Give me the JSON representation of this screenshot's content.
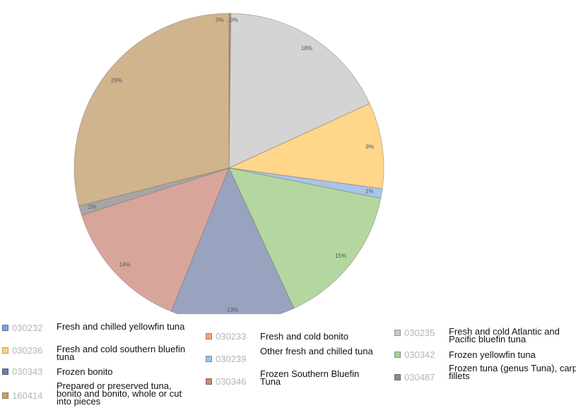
{
  "chart_data": {
    "type": "pie",
    "start_angle_deg": 0,
    "direction": "clockwise",
    "slices": [
      {
        "code": "030232",
        "name": "Fresh and chilled yellowfin tuna",
        "value": 0.1,
        "label": "0%",
        "color": "#8fa8dc"
      },
      {
        "code": "030233",
        "name": "Fresh and cold bonito",
        "value": 0.1,
        "label": "0%",
        "color": "#f4a07a"
      },
      {
        "code": "030235",
        "name": "Fresh and cold Atlantic and Pacific bluefin tuna",
        "value": 18,
        "label": "18%",
        "color": "#d4d4d4"
      },
      {
        "code": "030236",
        "name": "Fresh and cold southern bluefin tuna",
        "value": 9,
        "label": "9%",
        "color": "#ffd68a"
      },
      {
        "code": "030239",
        "name": "Other fresh and chilled tuna",
        "value": 1,
        "label": "1%",
        "color": "#a9c4ea"
      },
      {
        "code": "030342",
        "name": "Frozen yellowfin tuna",
        "value": 15,
        "label": "15%",
        "color": "#b4d69f"
      },
      {
        "code": "030343",
        "name": "Frozen bonito",
        "value": 13,
        "label": "13%",
        "color": "#98a3c0"
      },
      {
        "code": "030346",
        "name": "Frozen Southern Bluefin Tuna",
        "value": 14,
        "label": "14%",
        "color": "#d8a59a"
      },
      {
        "code": "030487",
        "name": "Frozen tuna (genus Tuna), carp fillets",
        "value": 1,
        "label": "1%",
        "color": "#a6a6a6"
      },
      {
        "code": "160414",
        "name": "Prepared or preserved tuna, bonito and bonito, whole or cut into pieces",
        "value": 29,
        "label": "29%",
        "color": "#cfb48e"
      }
    ]
  },
  "legend": [
    {
      "code": "030232",
      "desc": "Fresh and chilled yellowfin tuna",
      "color": "#7e9fd8"
    },
    {
      "code": "030233",
      "desc": "Fresh and cold bonito",
      "color": "#f4a07a"
    },
    {
      "code": "030235",
      "desc": "Fresh and cold Atlantic and Pacific bluefin tuna",
      "color": "#c8c8c8"
    },
    {
      "code": "030236",
      "desc": "Fresh and cold southern bluefin tuna",
      "color": "#ffd27a"
    },
    {
      "code": "030239",
      "desc": "Other fresh and chilled tuna",
      "color": "#9fc0ea"
    },
    {
      "code": "030342",
      "desc": "Frozen yellowfin tuna",
      "color": "#a6d28e"
    },
    {
      "code": "030343",
      "desc": "Frozen bonito",
      "color": "#6f7ea6"
    },
    {
      "code": "030346",
      "desc": "Frozen Southern Bluefin Tuna",
      "color": "#c58870"
    },
    {
      "code": "030487",
      "desc": "Frozen tuna (genus Tuna), carp fillets",
      "color": "#8c8c8c"
    },
    {
      "code": "160414",
      "desc": "Prepared or preserved tuna, bonito and bonito, whole or cut into pieces",
      "color": "#c4a463"
    }
  ]
}
